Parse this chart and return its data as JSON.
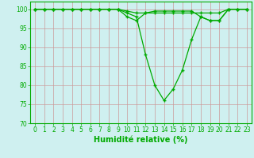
{
  "xlabel": "Humidité relative (%)",
  "background_color": "#cff0f0",
  "line_color": "#00aa00",
  "marker": "+",
  "xlim": [
    -0.5,
    23.5
  ],
  "ylim": [
    70,
    102
  ],
  "yticks": [
    70,
    75,
    80,
    85,
    90,
    95,
    100
  ],
  "xticks": [
    0,
    1,
    2,
    3,
    4,
    5,
    6,
    7,
    8,
    9,
    10,
    11,
    12,
    13,
    14,
    15,
    16,
    17,
    18,
    19,
    20,
    21,
    22,
    23
  ],
  "grid_color": "#cc9999",
  "series": [
    [
      100,
      100,
      100,
      100,
      100,
      100,
      100,
      100,
      100,
      100,
      99.5,
      99,
      99,
      99,
      99,
      99,
      99,
      99,
      99,
      99,
      99,
      100,
      100,
      100
    ],
    [
      100,
      100,
      100,
      100,
      100,
      100,
      100,
      100,
      100,
      100,
      99,
      98,
      88,
      80,
      76,
      79,
      84,
      92,
      98,
      97,
      97,
      100,
      100,
      100
    ],
    [
      100,
      100,
      100,
      100,
      100,
      100,
      100,
      100,
      100,
      100,
      98,
      97,
      99,
      99.5,
      99.5,
      99.5,
      99.5,
      99.5,
      98,
      97,
      97,
      100,
      100,
      100
    ]
  ],
  "xlabel_fontsize": 7,
  "tick_labelsize": 5.5,
  "linewidth": 0.9,
  "markersize": 3.5,
  "markeredgewidth": 1.0
}
